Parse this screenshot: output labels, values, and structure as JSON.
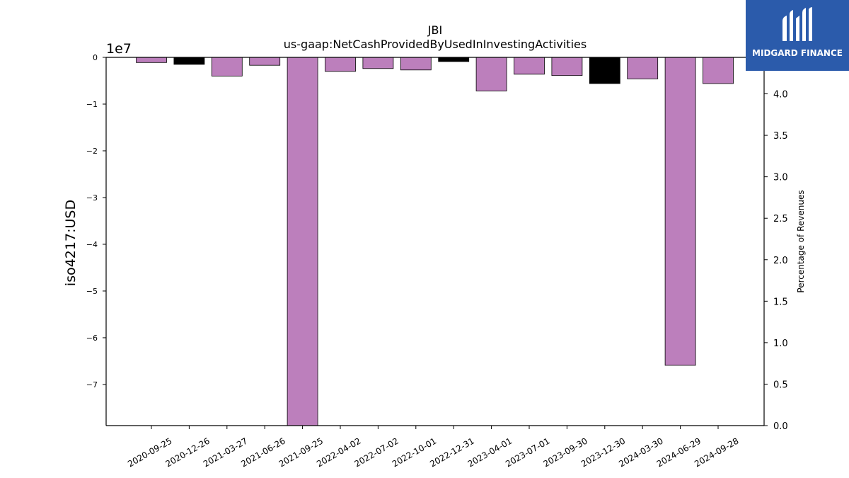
{
  "chart_data": {
    "type": "bar",
    "title": "JBI",
    "subtitle": "us-gaap:NetCashProvidedByUsedInInvestingActivities",
    "ylabel": "iso4217:USD",
    "y_offset_label": "1e7",
    "y2label": "Percentage of Revenues",
    "categories": [
      "2020-09-25",
      "2020-12-26",
      "2021-03-27",
      "2021-06-26",
      "2021-09-25",
      "2022-04-02",
      "2022-07-02",
      "2022-10-01",
      "2022-12-31",
      "2023-04-01",
      "2023-07-01",
      "2023-09-30",
      "2023-12-30",
      "2024-03-30",
      "2024-06-29",
      "2024-09-28"
    ],
    "values": [
      -1100000,
      -1500000,
      -4000000,
      -1700000,
      -79000000,
      -3000000,
      -2400000,
      -2700000,
      -900000,
      -7200000,
      -3600000,
      -3900000,
      -5600000,
      -4600000,
      -65900000,
      -5600000
    ],
    "bar_colors": [
      "#bc7fbc",
      "#000000",
      "#bc7fbc",
      "#bc7fbc",
      "#bc7fbc",
      "#bc7fbc",
      "#bc7fbc",
      "#bc7fbc",
      "#000000",
      "#bc7fbc",
      "#bc7fbc",
      "#bc7fbc",
      "#000000",
      "#bc7fbc",
      "#bc7fbc",
      "#bc7fbc"
    ],
    "ylim": [
      -78800000,
      0
    ],
    "yticks": [
      0,
      -10000000,
      -20000000,
      -30000000,
      -40000000,
      -50000000,
      -60000000,
      -70000000
    ],
    "ytick_labels": [
      "0",
      "−1",
      "−2",
      "−3",
      "−4",
      "−5",
      "−6",
      "−7"
    ],
    "y2lim": [
      0,
      4.44
    ],
    "y2ticks": [
      0.0,
      0.5,
      1.0,
      1.5,
      2.0,
      2.5,
      3.0,
      3.5,
      4.0
    ],
    "y2tick_labels": [
      "0.0",
      "0.5",
      "1.0",
      "1.5",
      "2.0",
      "2.5",
      "3.0",
      "3.5",
      "4.0"
    ],
    "grid": false,
    "legend": "none"
  },
  "logo": {
    "text": "MIDGARD FINANCE",
    "background": "#2b5bab",
    "icon": "midgard-logo-icon"
  }
}
